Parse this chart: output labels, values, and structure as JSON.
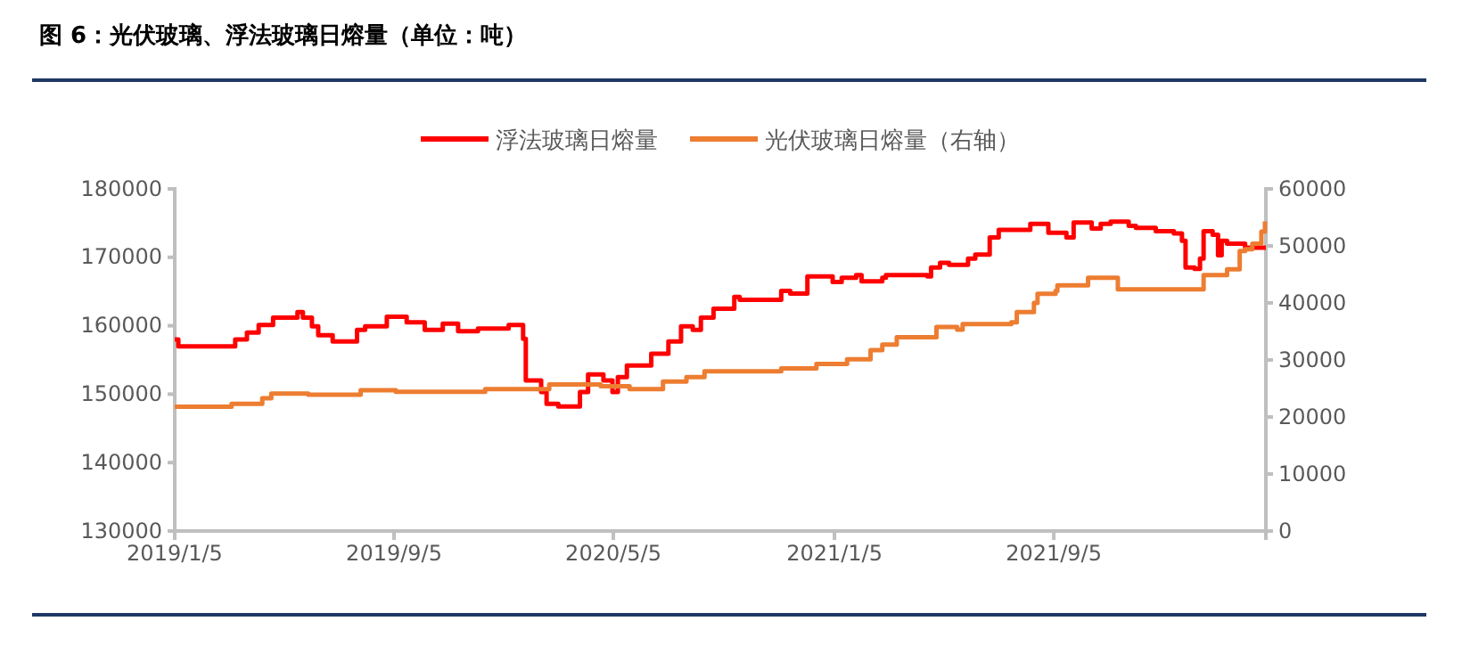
{
  "chart_data": {
    "type": "step",
    "title": "图 6：光伏玻璃、浮法玻璃日熔量（单位：吨）",
    "legend": "top",
    "xlim": [
      "2019-01-05",
      "2022-04-28"
    ],
    "xticks": [
      {
        "value": "2019-01-05",
        "label": "2019/1/5"
      },
      {
        "value": "2019-09-05",
        "label": "2019/9/5"
      },
      {
        "value": "2020-05-05",
        "label": "2020/5/5"
      },
      {
        "value": "2021-01-05",
        "label": "2021/1/5"
      },
      {
        "value": "2021-09-05",
        "label": "2021/9/5"
      }
    ],
    "ylim": [
      130000,
      180000
    ],
    "yticks": [
      130000,
      140000,
      150000,
      160000,
      170000,
      180000
    ],
    "y2lim": [
      0,
      60000
    ],
    "y2ticks": [
      0,
      10000,
      20000,
      30000,
      40000,
      50000,
      60000
    ],
    "series": [
      {
        "name": "浮法玻璃日熔量",
        "color": "#ff0000",
        "x": [
          "2019-01-05",
          "2019-01-09",
          "2019-03-13",
          "2019-03-26",
          "2019-04-08",
          "2019-04-24",
          "2019-05-21",
          "2019-05-27",
          "2019-06-06",
          "2019-06-13",
          "2019-06-29",
          "2019-07-26",
          "2019-08-04",
          "2019-08-28",
          "2019-09-19",
          "2019-10-09",
          "2019-10-29",
          "2019-11-15",
          "2019-12-07",
          "2020-01-10",
          "2020-01-26",
          "2020-01-29",
          "2020-02-15",
          "2020-02-21",
          "2020-03-05",
          "2020-03-29",
          "2020-04-07",
          "2020-04-24",
          "2020-05-04",
          "2020-05-10",
          "2020-05-20",
          "2020-06-16",
          "2020-07-05",
          "2020-07-19",
          "2020-08-01",
          "2020-08-10",
          "2020-08-24",
          "2020-09-16",
          "2020-09-22",
          "2020-10-28",
          "2020-11-07",
          "2020-11-17",
          "2020-12-06",
          "2021-01-03",
          "2021-01-13",
          "2021-01-29",
          "2021-02-04",
          "2021-02-27",
          "2021-03-03",
          "2021-04-18",
          "2021-04-22",
          "2021-05-02",
          "2021-05-12",
          "2021-06-02",
          "2021-06-10",
          "2021-06-26",
          "2021-07-06",
          "2021-08-05",
          "2021-08-10",
          "2021-08-30",
          "2021-09-19",
          "2021-09-27",
          "2021-10-17",
          "2021-10-27",
          "2021-11-07",
          "2021-11-27",
          "2021-12-05",
          "2021-12-27",
          "2022-01-16",
          "2022-01-25",
          "2022-01-29",
          "2022-02-08",
          "2022-02-14",
          "2022-02-18",
          "2022-02-28",
          "2022-03-06",
          "2022-03-10",
          "2022-03-16",
          "2022-04-05",
          "2022-04-28"
        ],
        "values": [
          158000,
          157000,
          158000,
          159000,
          160100,
          161200,
          162000,
          161200,
          159900,
          158600,
          157700,
          159400,
          159900,
          161300,
          160500,
          159400,
          160300,
          159200,
          159600,
          160100,
          158100,
          152000,
          150300,
          148600,
          148200,
          150300,
          152900,
          152000,
          150300,
          152500,
          154200,
          155900,
          157700,
          159900,
          159400,
          161200,
          162500,
          164200,
          163800,
          163800,
          165100,
          164700,
          167200,
          166400,
          167000,
          167400,
          166500,
          167000,
          167400,
          167200,
          168500,
          169200,
          168900,
          169800,
          170400,
          172900,
          174000,
          174000,
          174900,
          173600,
          172900,
          175100,
          174200,
          174900,
          175200,
          174600,
          174300,
          173800,
          173500,
          172400,
          168500,
          168300,
          169800,
          173800,
          173300,
          170300,
          172400,
          172000,
          171400,
          171400
        ]
      },
      {
        "name": "光伏玻璃日熔量（右轴）",
        "color": "#ed7d31",
        "axis": "y2",
        "x": [
          "2019-01-05",
          "2019-03-09",
          "2019-04-12",
          "2019-04-22",
          "2019-06-02",
          "2019-07-30",
          "2019-09-07",
          "2019-12-15",
          "2020-02-24",
          "2020-04-21",
          "2020-05-23",
          "2020-06-29",
          "2020-07-25",
          "2020-08-14",
          "2020-11-07",
          "2020-12-16",
          "2021-01-19",
          "2021-02-14",
          "2021-02-27",
          "2021-03-15",
          "2021-04-28",
          "2021-05-21",
          "2021-05-27",
          "2021-07-20",
          "2021-07-26",
          "2021-08-14",
          "2021-08-18",
          "2021-09-07",
          "2021-09-09",
          "2021-10-13",
          "2021-11-15",
          "2022-02-14",
          "2022-02-18",
          "2022-03-16",
          "2022-03-30",
          "2022-04-05",
          "2022-04-13",
          "2022-04-23",
          "2022-04-27"
        ],
        "values": [
          21800,
          22300,
          23300,
          24100,
          23900,
          24700,
          24400,
          24900,
          25700,
          25400,
          24900,
          26200,
          27000,
          28000,
          28500,
          29300,
          30100,
          31700,
          32700,
          34000,
          35800,
          35300,
          36300,
          36600,
          38400,
          40000,
          41600,
          42100,
          43100,
          44400,
          42400,
          42400,
          44900,
          45900,
          49100,
          49400,
          50400,
          52500,
          54300
        ]
      }
    ]
  }
}
